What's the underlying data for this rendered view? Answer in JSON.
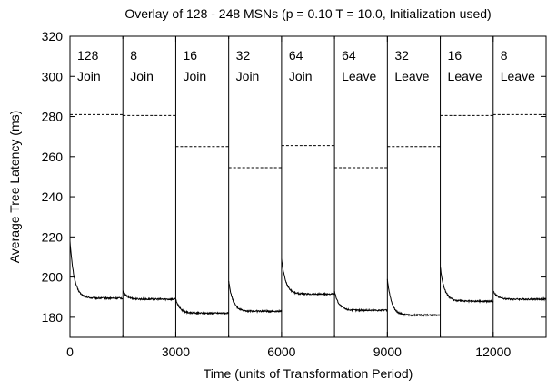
{
  "chart_data": {
    "type": "line",
    "title": "Overlay of 128 - 248 MSNs (p = 0.10 T = 10.0, Initialization used)",
    "xlabel": "Time (units of Transformation Period)",
    "ylabel": "Average Tree Latency (ms)",
    "xlim": [
      0,
      13500
    ],
    "ylim": [
      170,
      320
    ],
    "xticks": [
      0,
      3000,
      6000,
      9000,
      12000
    ],
    "xticks_labels": [
      "0",
      "3000",
      "6000",
      "9000",
      "12000"
    ],
    "xticks_minor": [
      1500,
      4500,
      7500,
      10500,
      13500
    ],
    "yticks": [
      180,
      200,
      220,
      240,
      260,
      280,
      300,
      320
    ],
    "yticks_labels": [
      "180",
      "200",
      "220",
      "240",
      "260",
      "280",
      "300",
      "320"
    ],
    "grid": false,
    "phase_boundaries": [
      1500,
      3000,
      4500,
      6000,
      7500,
      9000,
      10500,
      12000
    ],
    "phases": [
      {
        "size": "128",
        "action": "Join",
        "start": 0,
        "end": 1500,
        "reference": 281,
        "initial": 218,
        "final": 189.5
      },
      {
        "size": "8",
        "action": "Join",
        "start": 1500,
        "end": 3000,
        "reference": 280.5,
        "initial": 193,
        "final": 189
      },
      {
        "size": "16",
        "action": "Join",
        "start": 3000,
        "end": 4500,
        "reference": 265,
        "initial": 189,
        "final": 182
      },
      {
        "size": "32",
        "action": "Join",
        "start": 4500,
        "end": 6000,
        "reference": 254.5,
        "initial": 198,
        "final": 183
      },
      {
        "size": "64",
        "action": "Join",
        "start": 6000,
        "end": 7500,
        "reference": 265.5,
        "initial": 209,
        "final": 191.5
      },
      {
        "size": "64",
        "action": "Leave",
        "start": 7500,
        "end": 9000,
        "reference": 254.5,
        "initial": 193,
        "final": 183.5
      },
      {
        "size": "32",
        "action": "Leave",
        "start": 9000,
        "end": 10500,
        "reference": 265,
        "initial": 199,
        "final": 181
      },
      {
        "size": "16",
        "action": "Leave",
        "start": 10500,
        "end": 12000,
        "reference": 280.5,
        "initial": 205,
        "final": 188
      },
      {
        "size": "8",
        "action": "Leave",
        "start": 12000,
        "end": 13500,
        "reference": 281,
        "initial": 193,
        "final": 189
      }
    ]
  }
}
